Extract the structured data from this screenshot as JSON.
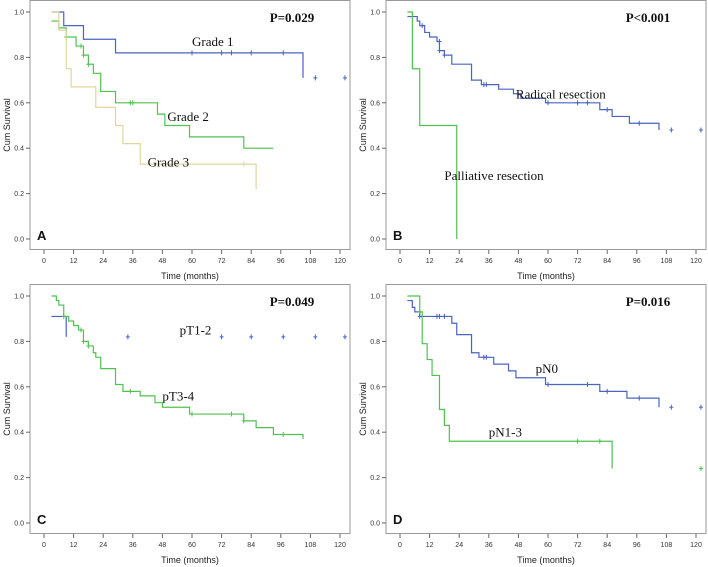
{
  "chart_data": [
    {
      "type": "line",
      "panel": "A",
      "title": "",
      "p_value": "P=0.029",
      "xlabel": "Time (months)",
      "ylabel": "Cum Survival",
      "xlim": [
        0,
        125
      ],
      "ylim": [
        0,
        1.0
      ],
      "xticks": [
        "0",
        "12",
        "24",
        "36",
        "48",
        "60",
        "72",
        "84",
        "96",
        "108",
        "120"
      ],
      "yticks": [
        "0.0",
        "0.2",
        "0.4",
        "0.6",
        "0.8",
        "1.0"
      ],
      "series": [
        {
          "name": "Grade 1",
          "color": "#4a63c4",
          "steps": [
            [
              3,
              1.0
            ],
            [
              8,
              0.94
            ],
            [
              16,
              0.88
            ],
            [
              29,
              0.82
            ],
            [
              105,
              0.71
            ]
          ],
          "end": 105,
          "censored": [
            [
              60,
              0.82
            ],
            [
              72,
              0.82
            ],
            [
              76,
              0.82
            ],
            [
              84,
              0.82
            ],
            [
              97,
              0.82
            ],
            [
              110,
              0.71
            ],
            [
              122,
              0.71
            ]
          ]
        },
        {
          "name": "Grade 2",
          "color": "#4fc24f",
          "steps": [
            [
              3,
              0.96
            ],
            [
              6,
              0.93
            ],
            [
              9,
              0.89
            ],
            [
              13,
              0.85
            ],
            [
              16,
              0.81
            ],
            [
              18,
              0.77
            ],
            [
              20,
              0.73
            ],
            [
              23,
              0.65
            ],
            [
              29,
              0.6
            ],
            [
              46,
              0.55
            ],
            [
              49,
              0.5
            ],
            [
              59,
              0.45
            ],
            [
              81,
              0.4
            ]
          ],
          "end": 93,
          "censored": [
            [
              9,
              0.89
            ],
            [
              15,
              0.85
            ],
            [
              16,
              0.81
            ],
            [
              18,
              0.77
            ],
            [
              35,
              0.6
            ],
            [
              36,
              0.6
            ]
          ]
        },
        {
          "name": "Grade 3",
          "color": "#e2d59e",
          "steps": [
            [
              3,
              1.0
            ],
            [
              6,
              0.92
            ],
            [
              9,
              0.75
            ],
            [
              11,
              0.67
            ],
            [
              21,
              0.58
            ],
            [
              29,
              0.5
            ],
            [
              32,
              0.42
            ],
            [
              39,
              0.33
            ]
          ],
          "end": 86,
          "end_value": 0.22,
          "censored": [
            [
              81,
              0.33
            ]
          ]
        }
      ]
    },
    {
      "type": "line",
      "panel": "B",
      "title": "",
      "p_value": "P<0.001",
      "xlabel": "Time (months)",
      "ylabel": "Cum Survival",
      "xlim": [
        0,
        125
      ],
      "ylim": [
        0,
        1.0
      ],
      "xticks": [
        "0",
        "12",
        "24",
        "36",
        "48",
        "60",
        "72",
        "84",
        "96",
        "108",
        "120"
      ],
      "yticks": [
        "0.0",
        "0.2",
        "0.4",
        "0.6",
        "0.8",
        "1.0"
      ],
      "series": [
        {
          "name": "Radical resection",
          "color": "#4a63c4",
          "steps": [
            [
              3,
              0.98
            ],
            [
              7,
              0.96
            ],
            [
              8,
              0.94
            ],
            [
              10,
              0.91
            ],
            [
              12,
              0.89
            ],
            [
              15,
              0.87
            ],
            [
              16,
              0.83
            ],
            [
              18,
              0.81
            ],
            [
              21,
              0.77
            ],
            [
              29,
              0.7
            ],
            [
              33,
              0.68
            ],
            [
              40,
              0.66
            ],
            [
              46,
              0.64
            ],
            [
              49,
              0.62
            ],
            [
              59,
              0.6
            ],
            [
              81,
              0.57
            ],
            [
              86,
              0.54
            ],
            [
              93,
              0.51
            ]
          ],
          "end": 105,
          "end_value": 0.48,
          "censored": [
            [
              9,
              0.94
            ],
            [
              16,
              0.87
            ],
            [
              16,
              0.83
            ],
            [
              18,
              0.81
            ],
            [
              34,
              0.68
            ],
            [
              35,
              0.68
            ],
            [
              60,
              0.6
            ],
            [
              72,
              0.6
            ],
            [
              76,
              0.6
            ],
            [
              84,
              0.57
            ],
            [
              97,
              0.51
            ],
            [
              110,
              0.48
            ],
            [
              122,
              0.48
            ]
          ]
        },
        {
          "name": "Palliative resection",
          "color": "#4fc24f",
          "steps": [
            [
              3,
              1.0
            ],
            [
              5,
              0.75
            ],
            [
              8,
              0.5
            ]
          ],
          "end": 23,
          "end_value": 0.0,
          "censored": []
        }
      ]
    },
    {
      "type": "line",
      "panel": "C",
      "title": "",
      "p_value": "P=0.049",
      "xlabel": "Time (months)",
      "ylabel": "Cum Survival",
      "xlim": [
        0,
        125
      ],
      "ylim": [
        0,
        1.0
      ],
      "xticks": [
        "0",
        "12",
        "24",
        "36",
        "48",
        "60",
        "72",
        "84",
        "96",
        "108",
        "120"
      ],
      "yticks": [
        "0.0",
        "0.2",
        "0.4",
        "0.6",
        "0.8",
        "1.0"
      ],
      "series": [
        {
          "name": "pT1-2",
          "color": "#4a63c4",
          "steps": [
            [
              3,
              0.91
            ]
          ],
          "end": 9,
          "end_value": 0.82,
          "censored": [
            [
              34,
              0.82
            ],
            [
              72,
              0.82
            ],
            [
              84,
              0.82
            ],
            [
              97,
              0.82
            ],
            [
              110,
              0.82
            ],
            [
              122,
              0.82
            ]
          ]
        },
        {
          "name": "pT3-4",
          "color": "#4fc24f",
          "steps": [
            [
              3,
              1.0
            ],
            [
              5,
              0.98
            ],
            [
              6,
              0.96
            ],
            [
              8,
              0.91
            ],
            [
              10,
              0.89
            ],
            [
              12,
              0.87
            ],
            [
              14,
              0.85
            ],
            [
              16,
              0.8
            ],
            [
              18,
              0.78
            ],
            [
              20,
              0.75
            ],
            [
              21,
              0.73
            ],
            [
              23,
              0.68
            ],
            [
              29,
              0.61
            ],
            [
              32,
              0.58
            ],
            [
              39,
              0.56
            ],
            [
              45,
              0.53
            ],
            [
              48,
              0.51
            ],
            [
              59,
              0.48
            ],
            [
              81,
              0.45
            ],
            [
              86,
              0.42
            ],
            [
              93,
              0.39
            ]
          ],
          "end": 105,
          "end_value": 0.37,
          "censored": [
            [
              8,
              0.91
            ],
            [
              15,
              0.85
            ],
            [
              16,
              0.8
            ],
            [
              18,
              0.78
            ],
            [
              35,
              0.58
            ],
            [
              60,
              0.48
            ],
            [
              76,
              0.48
            ],
            [
              81,
              0.45
            ],
            [
              97,
              0.39
            ]
          ]
        }
      ]
    },
    {
      "type": "line",
      "panel": "D",
      "title": "",
      "p_value": "P=0.016",
      "xlabel": "Time (months)",
      "ylabel": "Cum Survival",
      "xlim": [
        0,
        125
      ],
      "ylim": [
        0,
        1.0
      ],
      "xticks": [
        "0",
        "12",
        "24",
        "36",
        "48",
        "60",
        "72",
        "84",
        "96",
        "108",
        "120"
      ],
      "yticks": [
        "0.0",
        "0.2",
        "0.4",
        "0.6",
        "0.8",
        "1.0"
      ],
      "series": [
        {
          "name": "pN0",
          "color": "#4a63c4",
          "steps": [
            [
              3,
              0.98
            ],
            [
              5,
              0.95
            ],
            [
              6,
              0.93
            ],
            [
              8,
              0.91
            ],
            [
              21,
              0.88
            ],
            [
              23,
              0.83
            ],
            [
              29,
              0.75
            ],
            [
              32,
              0.73
            ],
            [
              38,
              0.7
            ],
            [
              44,
              0.67
            ],
            [
              47,
              0.64
            ],
            [
              59,
              0.61
            ],
            [
              81,
              0.58
            ],
            [
              92,
              0.55
            ]
          ],
          "end": 105,
          "end_value": 0.51,
          "censored": [
            [
              8,
              0.91
            ],
            [
              15,
              0.91
            ],
            [
              16,
              0.91
            ],
            [
              18,
              0.91
            ],
            [
              34,
              0.73
            ],
            [
              35,
              0.73
            ],
            [
              60,
              0.61
            ],
            [
              76,
              0.61
            ],
            [
              84,
              0.58
            ],
            [
              97,
              0.55
            ],
            [
              110,
              0.51
            ],
            [
              122,
              0.51
            ]
          ]
        },
        {
          "name": "pN1-3",
          "color": "#4fc24f",
          "steps": [
            [
              3,
              1.0
            ],
            [
              8,
              0.93
            ],
            [
              9,
              0.79
            ],
            [
              11,
              0.72
            ],
            [
              13,
              0.65
            ],
            [
              16,
              0.5
            ],
            [
              18,
              0.43
            ],
            [
              20,
              0.36
            ]
          ],
          "end": 86,
          "end_value": 0.24,
          "censored": [
            [
              8,
              0.93
            ],
            [
              72,
              0.36
            ],
            [
              81,
              0.36
            ],
            [
              122,
              0.24
            ]
          ]
        }
      ]
    }
  ]
}
